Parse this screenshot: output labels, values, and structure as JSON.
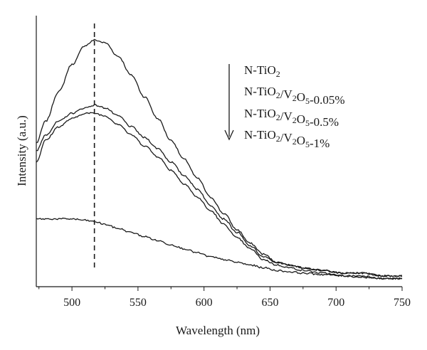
{
  "chart_data": {
    "type": "line",
    "title": "",
    "xlabel": "Wavelength (nm)",
    "ylabel": "Intensity (a.u.)",
    "xlim": [
      473,
      750
    ],
    "ylim": [
      0,
      100
    ],
    "x_ticks": [
      500,
      550,
      600,
      650,
      700,
      750
    ],
    "y_ticks_labeled": false,
    "grid": false,
    "legend_position": "top-right",
    "legend_arrow": "down",
    "reference_line": {
      "x": 517,
      "style": "dashed"
    },
    "series": [
      {
        "name": "N-TiO2",
        "x": [
          473,
          480,
          490,
          500,
          510,
          517,
          525,
          535,
          545,
          555,
          565,
          575,
          585,
          595,
          605,
          615,
          625,
          635,
          645,
          655,
          665,
          675,
          690,
          705,
          720,
          735,
          750
        ],
        "y": [
          53,
          61,
          72,
          82,
          89,
          91,
          90,
          85,
          78,
          70,
          62,
          54,
          47,
          40,
          33,
          27,
          21,
          16,
          12,
          9,
          8,
          7,
          6,
          5,
          5,
          4,
          4
        ]
      },
      {
        "name": "N-TiO2/V2O5-0.05%",
        "x": [
          473,
          480,
          490,
          500,
          510,
          517,
          525,
          535,
          545,
          555,
          565,
          575,
          585,
          595,
          605,
          615,
          625,
          635,
          645,
          655,
          665,
          675,
          690,
          705,
          720,
          735,
          750
        ],
        "y": [
          50,
          56,
          61,
          64,
          66,
          67,
          66,
          63,
          59,
          55,
          51,
          46,
          41,
          36,
          30,
          25,
          20,
          15,
          11,
          9,
          8,
          7,
          6,
          5,
          5,
          4,
          4
        ]
      },
      {
        "name": "N-TiO2/V2O5-0.5%",
        "x": [
          473,
          480,
          490,
          500,
          510,
          517,
          525,
          535,
          545,
          555,
          565,
          575,
          585,
          595,
          605,
          615,
          625,
          635,
          645,
          655,
          665,
          675,
          690,
          705,
          720,
          735,
          750
        ],
        "y": [
          46,
          54,
          59,
          62,
          64,
          64,
          63,
          60,
          56,
          52,
          48,
          43,
          38,
          33,
          28,
          23,
          18,
          14,
          10,
          8,
          7,
          6,
          5,
          4,
          4,
          3,
          3
        ]
      },
      {
        "name": "N-TiO2/V2O5-1%",
        "x": [
          473,
          480,
          490,
          500,
          510,
          517,
          525,
          535,
          545,
          555,
          565,
          575,
          585,
          595,
          605,
          615,
          625,
          635,
          645,
          655,
          665,
          675,
          690,
          705,
          720,
          735,
          750
        ],
        "y": [
          25,
          25,
          25,
          25,
          24.5,
          24,
          23,
          21.5,
          20,
          18.5,
          17,
          15.5,
          14,
          12.5,
          11,
          10,
          9,
          8,
          7,
          6,
          5.5,
          5,
          4.5,
          4,
          3.5,
          3,
          3
        ]
      }
    ],
    "legend": {
      "items": [
        {
          "base": "N-TiO",
          "sub": "2",
          "mid": "",
          "sub2": "",
          "tail": ""
        },
        {
          "base": "N-TiO",
          "sub": "2",
          "mid": "/V",
          "sub2": "2",
          "mid2": "O",
          "sub3": "5",
          "tail": "-0.05%"
        },
        {
          "base": "N-TiO",
          "sub": "2",
          "mid": "/V",
          "sub2": "2",
          "mid2": "O",
          "sub3": "5",
          "tail": "-0.5%"
        },
        {
          "base": "N-TiO",
          "sub": "2",
          "mid": "/V",
          "sub2": "2",
          "mid2": "O",
          "sub3": "5",
          "tail": "-1%"
        }
      ]
    },
    "colors": {
      "line": "#1a1a1a",
      "axis": "#1a1a1a",
      "background": "#ffffff"
    }
  }
}
